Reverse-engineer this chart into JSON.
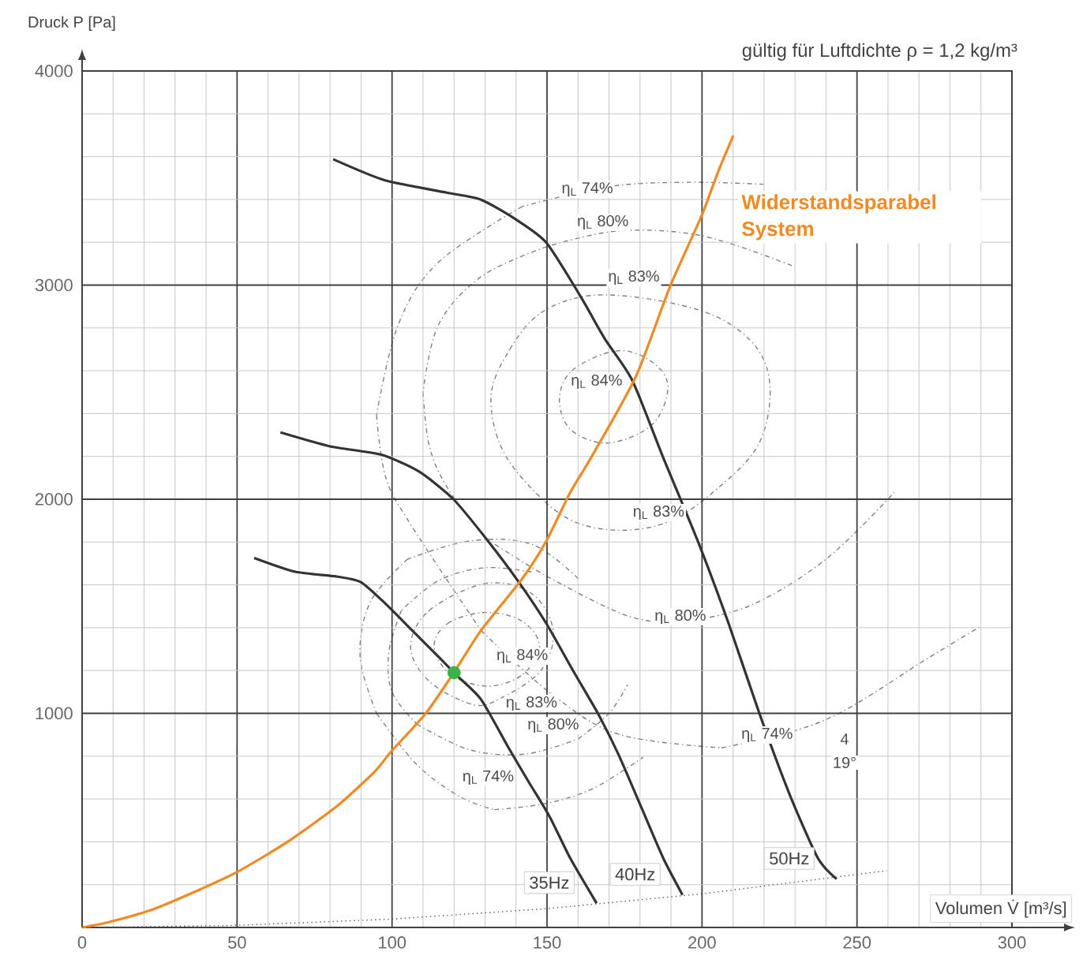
{
  "chart_data": {
    "type": "line",
    "subtitle": "gültig für Luftdichte  ρ = 1,2 kg/m³",
    "xlabel": "Volumen V̇  [m³/s]",
    "ylabel": "Druck P [Pa]",
    "xlim": [
      0,
      300
    ],
    "ylim": [
      0,
      4000
    ],
    "xticks": [
      0,
      50,
      100,
      150,
      200,
      250,
      300
    ],
    "yticks": [
      {
        "value": 0,
        "label": null
      },
      1000,
      2000,
      3000,
      4000
    ],
    "grid": true,
    "series": [
      {
        "name": "35Hz",
        "color": "#333333",
        "x": [
          55.5,
          68.8,
          82.1,
          89.9,
          97.6,
          106.5,
          115.4,
          120.9,
          128.7,
          137.6,
          144.2,
          150.9,
          157.5,
          166
        ],
        "values": [
          1726,
          1661,
          1639,
          1613,
          1516,
          1387,
          1258,
          1177,
          1065,
          839,
          677,
          516,
          323,
          113
        ]
      },
      {
        "name": "40Hz",
        "color": "#333333",
        "x": [
          64,
          80,
          96.5,
          108.7,
          119.8,
          130.9,
          140.9,
          149.8,
          158.6,
          166.4,
          173.1,
          180.8,
          187.5,
          193.7
        ],
        "values": [
          2312,
          2247,
          2208,
          2129,
          2000,
          1806,
          1613,
          1419,
          1194,
          1000,
          806,
          548,
          323,
          152
        ]
      },
      {
        "name": "50Hz",
        "color": "#333333",
        "x": [
          81,
          97.6,
          117.6,
          128.7,
          139.8,
          149.8,
          160.9,
          168.6,
          177.5,
          187.5,
          198.6,
          208.6,
          218.5,
          228.5,
          237.4,
          243.4
        ],
        "values": [
          3588,
          3490,
          3432,
          3399,
          3308,
          3198,
          2945,
          2750,
          2555,
          2194,
          1806,
          1419,
          1000,
          613,
          323,
          226
        ]
      },
      {
        "name": "Widerstandsparabel System",
        "color": "#f08a24",
        "x": [
          0,
          8.9,
          22.2,
          35.5,
          49.9,
          66.6,
          82.1,
          94.3,
          99.8,
          110.9,
          119.8,
          128.7,
          142,
          149.8,
          157.5,
          164.2,
          178.6,
          189.7,
          199.7,
          205.2,
          210.1
        ],
        "values": [
          0,
          26,
          81,
          161,
          258,
          403,
          565,
          726,
          823,
          1000,
          1187,
          1387,
          1629,
          1806,
          2032,
          2194,
          2571,
          2994,
          3318,
          3529,
          3698
        ]
      },
      {
        "color": "#555555",
        "line_style": "dotted",
        "x": [
          0,
          50,
          100,
          150,
          200,
          259.6
        ],
        "values": [
          0,
          10,
          39,
          88,
          157,
          265
        ]
      },
      {
        "type": "scatter",
        "color": "#3cb34a",
        "x": [
          120
        ],
        "values": [
          1190
        ]
      }
    ],
    "annotations": [
      {
        "text": "η$_{L}$ 74%",
        "x": 163,
        "y": 3447
      },
      {
        "text": "η$_{L}$ 80%",
        "x": 168,
        "y": 3293
      },
      {
        "text": "η$_{L}$ 83%",
        "x": 178,
        "y": 3035
      },
      {
        "text": "η$_{L}$ 84%",
        "x": 166,
        "y": 2549
      },
      {
        "text": "η$_{L}$ 83%",
        "x": 186,
        "y": 1937
      },
      {
        "text": "η$_{L}$ 80%",
        "x": 193,
        "y": 1451
      },
      {
        "text": "η$_{L}$ 74%",
        "x": 221,
        "y": 899
      },
      {
        "text": "η$_{L}$ 84%",
        "x": 142,
        "y": 1267
      },
      {
        "text": "η$_{L}$ 83%",
        "x": 145,
        "y": 1046
      },
      {
        "text": "η$_{L}$ 80%",
        "x": 152,
        "y": 943
      },
      {
        "text": "η$_{L}$ 74%",
        "x": 131,
        "y": 700
      },
      {
        "text": "4",
        "x": 246,
        "y": 880
      },
      {
        "text": "19°",
        "x": 246,
        "y": 770
      }
    ]
  }
}
